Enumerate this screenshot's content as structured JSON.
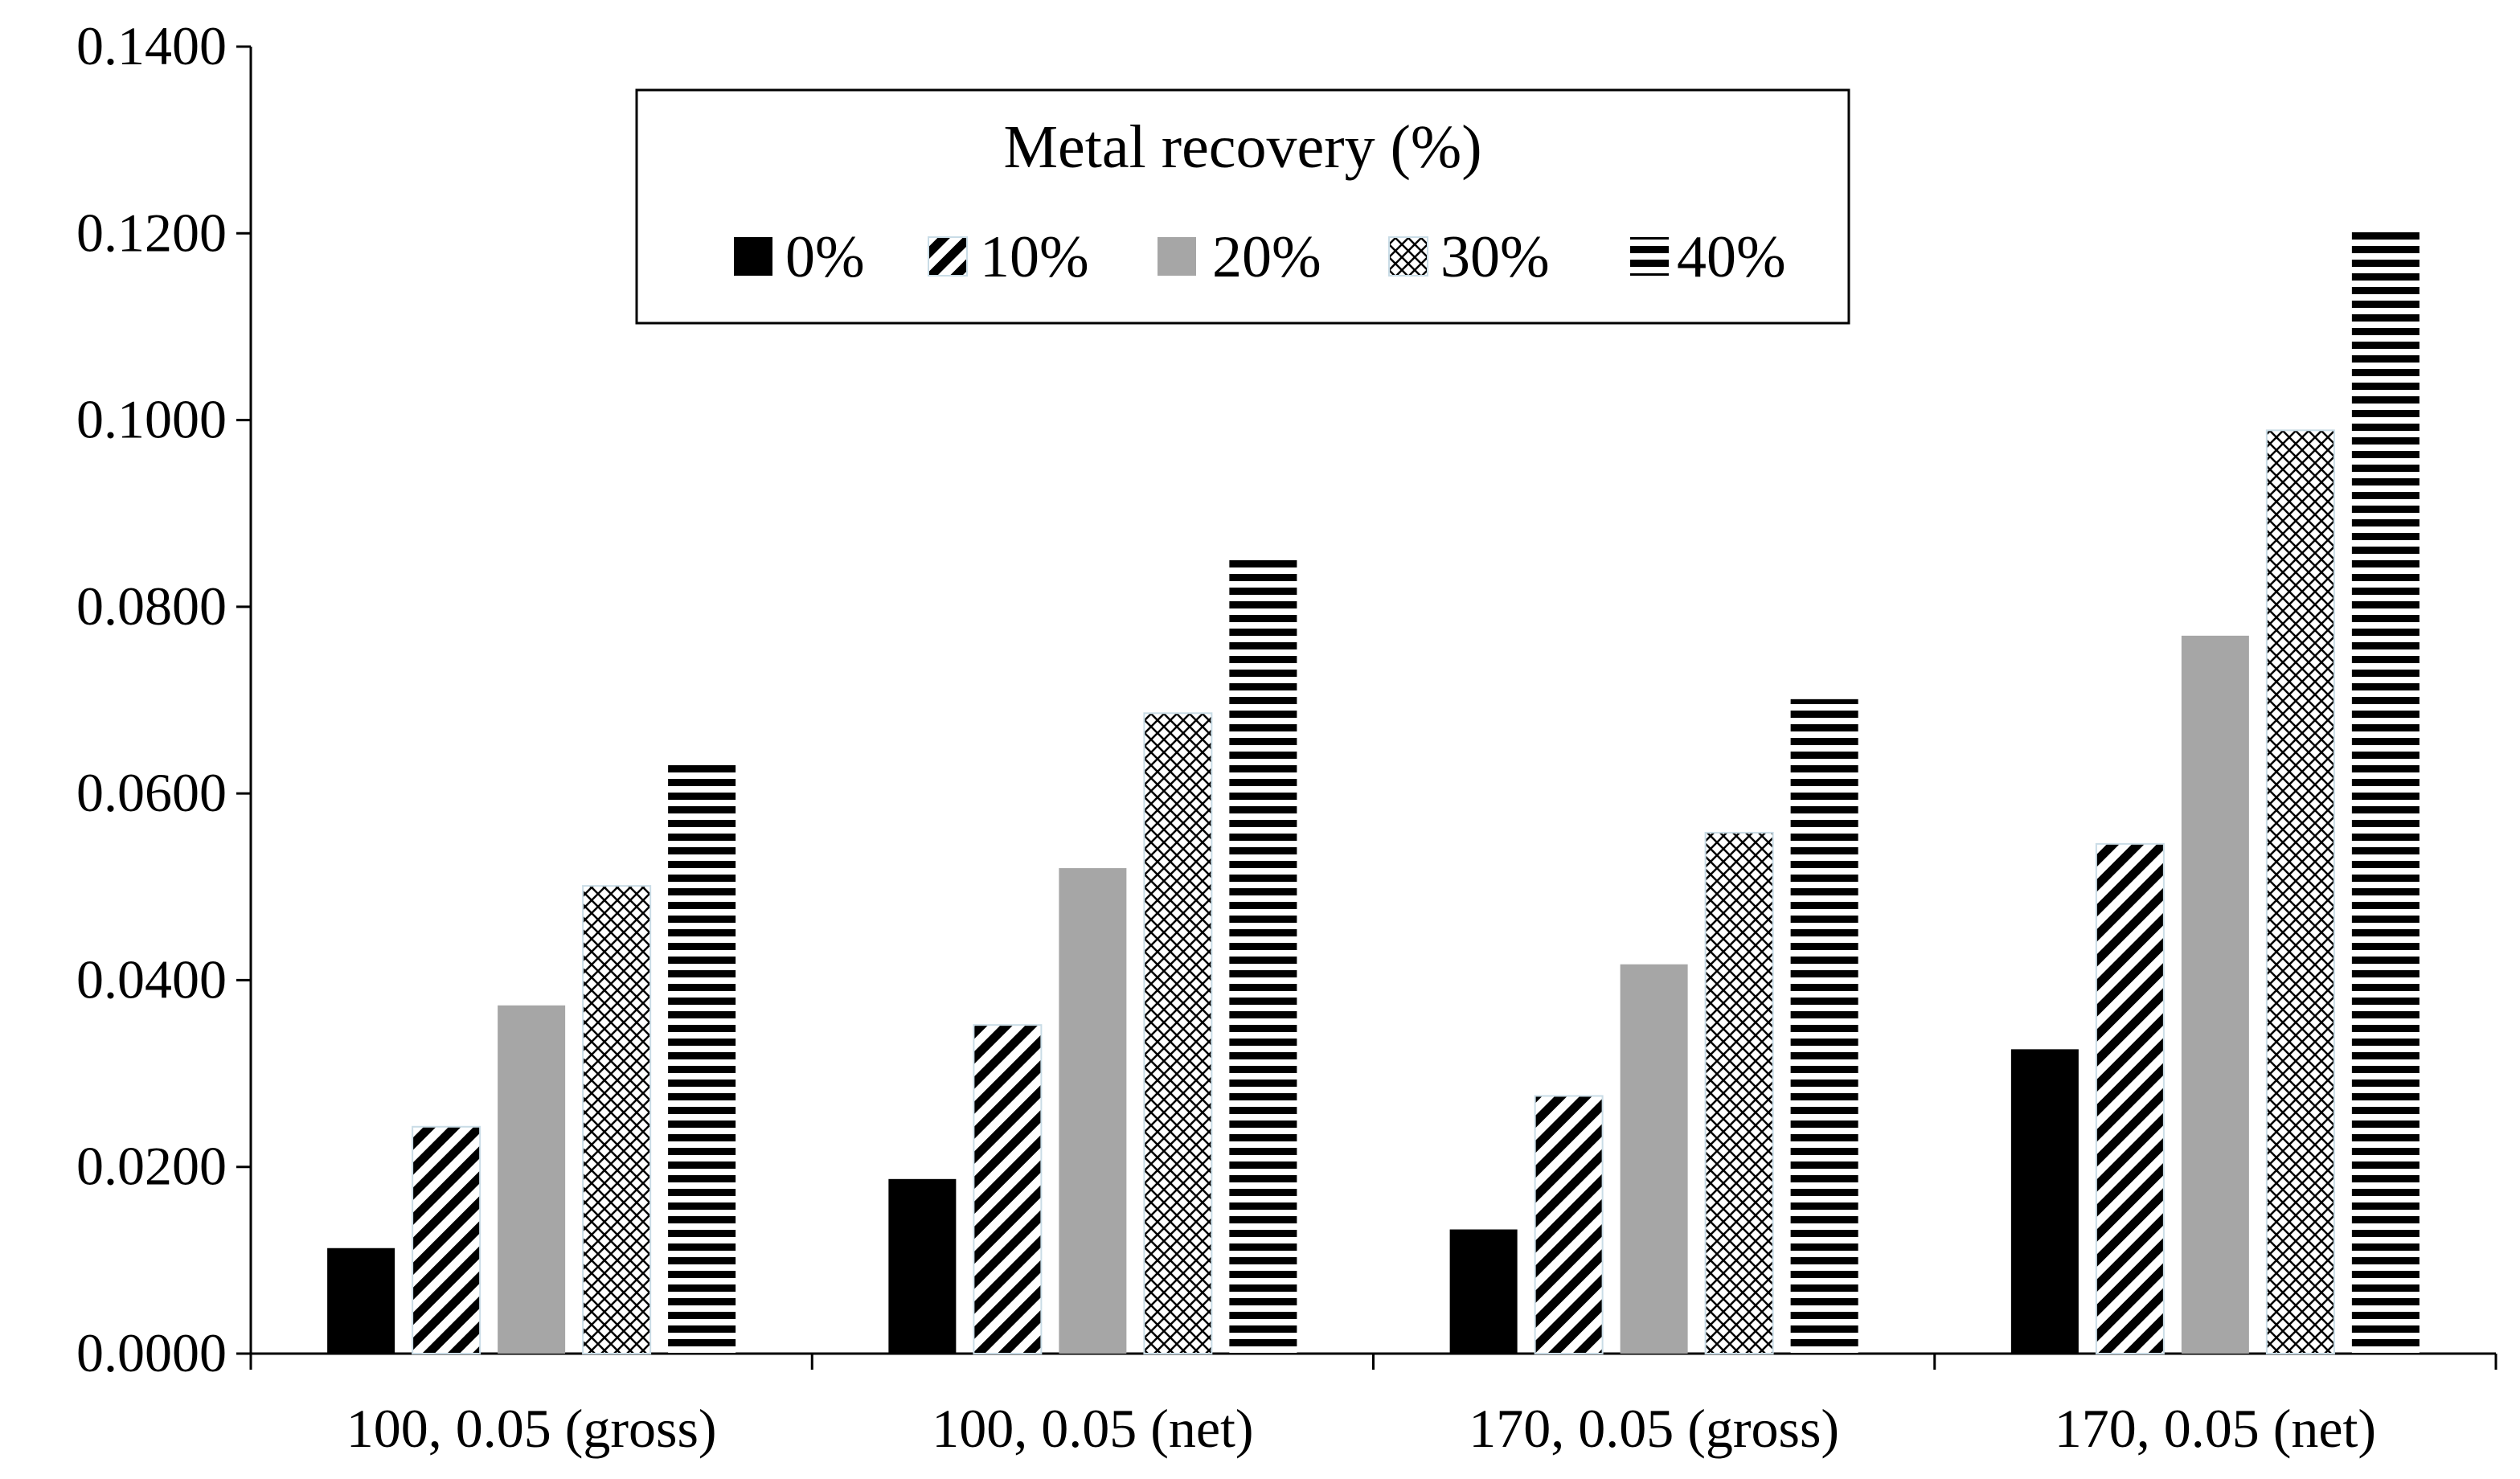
{
  "chart_data": {
    "type": "bar",
    "title": "",
    "xlabel": "",
    "ylabel": "",
    "ylim": [
      0,
      0.14
    ],
    "yticks": [
      "0.0000",
      "0.0200",
      "0.0400",
      "0.0600",
      "0.0800",
      "0.1000",
      "0.1200",
      "0.1400"
    ],
    "categories": [
      "100, 0.05 (gross)",
      "100, 0.05 (net)",
      "170, 0.05 (gross)",
      "170, 0.05 (net)"
    ],
    "legend": {
      "title": "Metal recovery (%)",
      "position": "top-center"
    },
    "series": [
      {
        "name": "0%",
        "pattern": "solid-black",
        "values": [
          0.0113,
          0.0187,
          0.0133,
          0.0326
        ]
      },
      {
        "name": "10%",
        "pattern": "diagonal-stripes",
        "values": [
          0.0243,
          0.0352,
          0.0276,
          0.0546
        ]
      },
      {
        "name": "20%",
        "pattern": "solid-gray",
        "values": [
          0.0373,
          0.052,
          0.0417,
          0.0769
        ]
      },
      {
        "name": "30%",
        "pattern": "crosshatch",
        "values": [
          0.0501,
          0.0686,
          0.0558,
          0.0989
        ]
      },
      {
        "name": "40%",
        "pattern": "horizontal-stripes",
        "values": [
          0.0633,
          0.0853,
          0.0701,
          0.1207
        ]
      }
    ],
    "colors": {
      "black": "#000000",
      "gray": "#a6a6a6",
      "axis": "#000000"
    }
  }
}
